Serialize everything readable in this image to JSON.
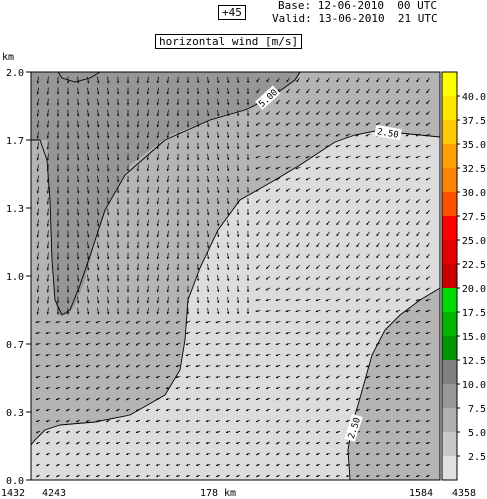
{
  "header": {
    "lead_time": "+45",
    "base": "Base: 12-06-2010  00 UTC",
    "valid": "Valid: 13-06-2010  21 UTC"
  },
  "chart_data": {
    "type": "heatmap",
    "title": "horizontal wind [m/s]",
    "ylabel": "km",
    "xlabel": "178 km",
    "x_corner_labels": [
      "1432",
      "4243",
      "1584",
      "4358"
    ],
    "yticks": [
      "0.0",
      "0.3",
      "0.7",
      "1.0",
      "1.3",
      "1.7",
      "2.0"
    ],
    "ylim": [
      0.0,
      2.0
    ],
    "colorbar": {
      "ticks": [
        "2.5",
        "5.0",
        "7.5",
        "10.0",
        "12.5",
        "15.0",
        "17.5",
        "20.0",
        "22.5",
        "25.0",
        "27.5",
        "30.0",
        "32.5",
        "35.0",
        "37.5",
        "40.0"
      ],
      "bins": [
        {
          "range": [
            0,
            2.5
          ],
          "color": "#e0e0e0"
        },
        {
          "range": [
            2.5,
            5.0
          ],
          "color": "#c8c8c8"
        },
        {
          "range": [
            5.0,
            7.5
          ],
          "color": "#b0b0b0"
        },
        {
          "range": [
            7.5,
            10.0
          ],
          "color": "#989898"
        },
        {
          "range": [
            10.0,
            12.5
          ],
          "color": "#808080"
        },
        {
          "range": [
            12.5,
            15.0
          ],
          "color": "#009600"
        },
        {
          "range": [
            15.0,
            17.5
          ],
          "color": "#00b400"
        },
        {
          "range": [
            17.5,
            20.0
          ],
          "color": "#00dc00"
        },
        {
          "range": [
            20.0,
            22.5
          ],
          "color": "#c80000"
        },
        {
          "range": [
            22.5,
            25.0
          ],
          "color": "#e60000"
        },
        {
          "range": [
            25.0,
            27.5
          ],
          "color": "#ff0000"
        },
        {
          "range": [
            27.5,
            30.0
          ],
          "color": "#ff5000"
        },
        {
          "range": [
            30.0,
            32.5
          ],
          "color": "#ff8200"
        },
        {
          "range": [
            32.5,
            35.0
          ],
          "color": "#ffa000"
        },
        {
          "range": [
            35.0,
            37.5
          ],
          "color": "#ffc800"
        },
        {
          "range": [
            37.5,
            40.0
          ],
          "color": "#ffe600"
        },
        {
          "range": [
            40.0,
            45.0
          ],
          "color": "#ffff00"
        }
      ]
    },
    "contour_labels": [
      "5.00",
      "2.50",
      "2.50"
    ],
    "region_colors": {
      "weak": "#dcdcdc",
      "moderate": "#b4b4b4",
      "strong": "#969696"
    }
  }
}
